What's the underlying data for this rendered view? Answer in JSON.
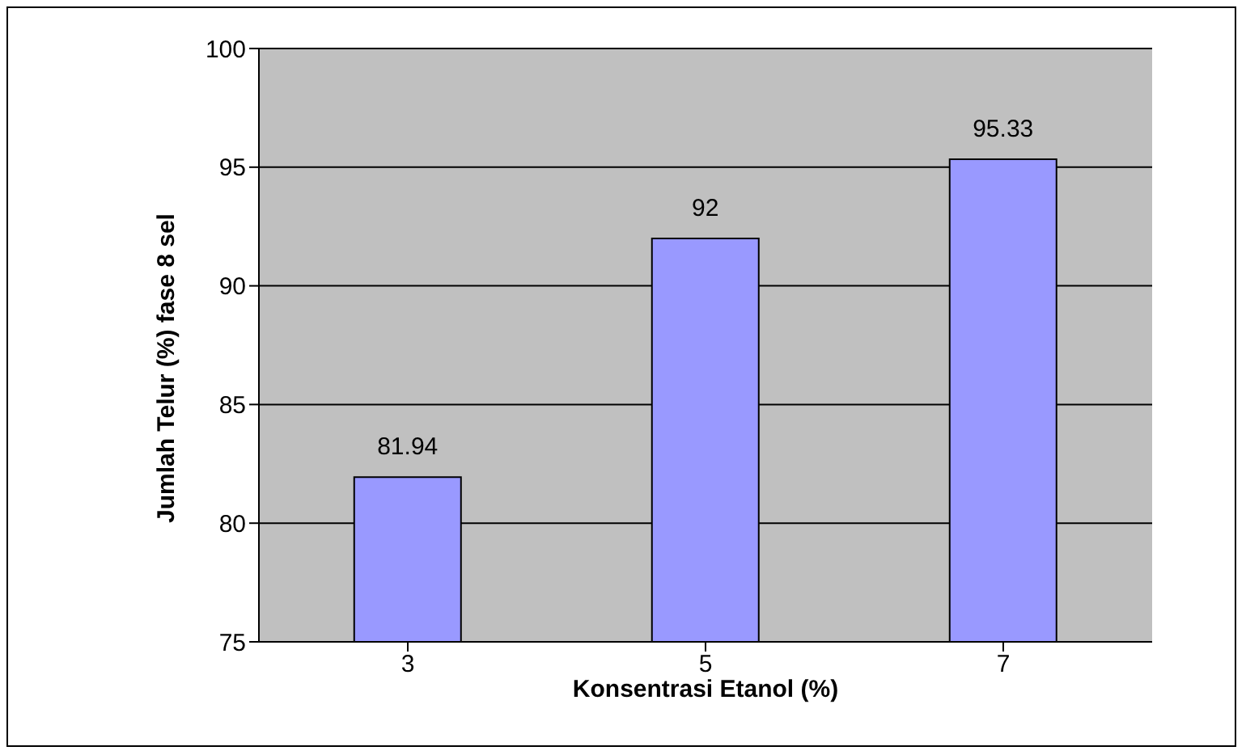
{
  "chart_data": {
    "type": "bar",
    "xlabel": "Konsentrasi Etanol (%)",
    "ylabel": "Jumlah Telur (%) fase 8 sel",
    "categories": [
      "3",
      "5",
      "7"
    ],
    "values": [
      81.94,
      92,
      95.33
    ],
    "color": "#9999ff",
    "ylim": [
      75,
      100
    ],
    "yticks": [
      75,
      80,
      85,
      90,
      95,
      100
    ],
    "grid": "y",
    "data_labels": true
  }
}
